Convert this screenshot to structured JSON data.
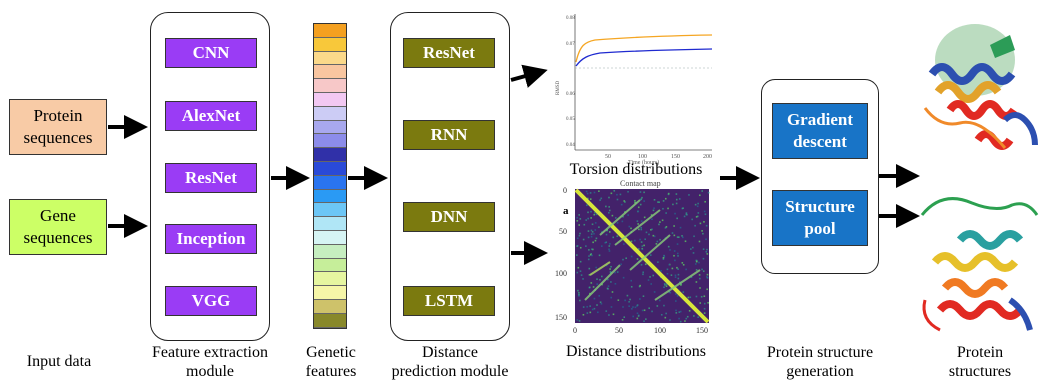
{
  "inputs": {
    "protein": "Protein\nsequences",
    "gene": "Gene\nsequences",
    "caption": "Input data",
    "colors": {
      "protein": "#f8cba6",
      "gene": "#ccff66"
    }
  },
  "feature_module": {
    "caption": "Feature extraction\nmodule",
    "nets": [
      "CNN",
      "AlexNet",
      "ResNet",
      "Inception",
      "VGG"
    ],
    "color": "#9a3cf5"
  },
  "genetic_features": {
    "caption": "Genetic\nfeatures",
    "colors": [
      "#f4a020",
      "#f8c83a",
      "#fbd98a",
      "#f9c6a0",
      "#f7c8c8",
      "#f2c8f2",
      "#ccccf5",
      "#a8a8ee",
      "#8c8cea",
      "#3030a8",
      "#2a4ad8",
      "#2a74f0",
      "#2a9af4",
      "#6cc6f6",
      "#b0e6f6",
      "#d6f4f4",
      "#c6eec0",
      "#c6ee9a",
      "#e6f6a0",
      "#f6f6a8",
      "#cec26a",
      "#88882a"
    ]
  },
  "distance_module": {
    "caption": "Distance\nprediction module",
    "nets": [
      "ResNet",
      "RNN",
      "DNN",
      "LSTM"
    ],
    "color": "#7b7a0f"
  },
  "torsion": {
    "caption": "Torsion distributions",
    "xlabel": "Time (hours)",
    "ylabel": "RMSD",
    "xticks": [
      "50",
      "100",
      "150",
      "200"
    ],
    "yticks": [
      "0.08",
      "0.07",
      "0.06",
      "0.05",
      "0.04"
    ],
    "series_colors": [
      "#f5a623",
      "#1f2ad0"
    ]
  },
  "distance_map": {
    "caption": "Distance distributions",
    "title": "Contact map",
    "panel_label": "a",
    "xticks": [
      "0",
      "50",
      "100",
      "150"
    ],
    "yticks": [
      "0",
      "50",
      "100",
      "150"
    ]
  },
  "structure_module": {
    "caption": "Protein structure\ngeneration",
    "methods": [
      "Gradient\ndescent",
      "Structure\npool"
    ],
    "color": "#1874c7"
  },
  "output": {
    "caption": "Protein\nstructures"
  }
}
